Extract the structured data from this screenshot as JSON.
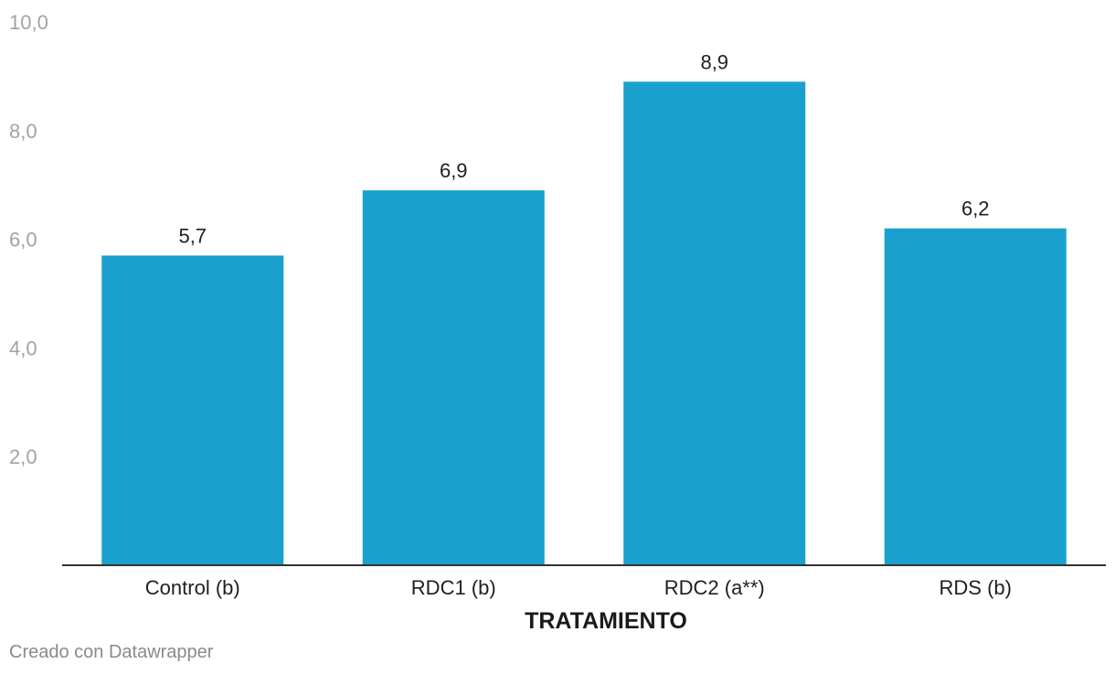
{
  "chart_data": {
    "type": "bar",
    "categories": [
      "Control (b)",
      "RDC1 (b)",
      "RDC2 (a**)",
      "RDS (b)"
    ],
    "values": [
      5.7,
      6.9,
      8.9,
      6.2
    ],
    "value_labels": [
      "5,7",
      "6,9",
      "8,9",
      "6,2"
    ],
    "xlabel": "TRATAMIENTO",
    "ylabel": "",
    "ylim": [
      0,
      10
    ],
    "y_ticks": [
      2,
      4,
      6,
      8,
      10
    ],
    "y_tick_labels": [
      "2,0",
      "4,0",
      "6,0",
      "8,0",
      "10,0"
    ],
    "grid": false,
    "bar_color": "#1aa0cc"
  },
  "footer": {
    "credit": "Creado con Datawrapper"
  }
}
